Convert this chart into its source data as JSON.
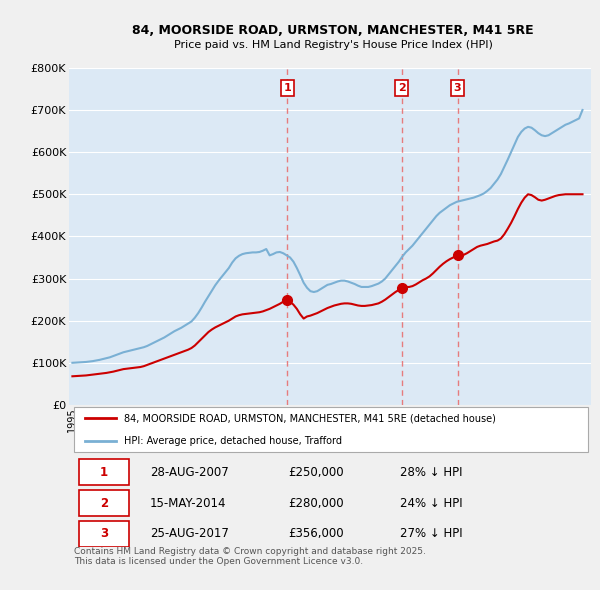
{
  "title": "84, MOORSIDE ROAD, URMSTON, MANCHESTER, M41 5RE",
  "subtitle": "Price paid vs. HM Land Registry's House Price Index (HPI)",
  "ylim": [
    0,
    800000
  ],
  "yticks": [
    0,
    100000,
    200000,
    300000,
    400000,
    500000,
    600000,
    700000,
    800000
  ],
  "ytick_labels": [
    "£0",
    "£100K",
    "£200K",
    "£300K",
    "£400K",
    "£500K",
    "£600K",
    "£700K",
    "£800K"
  ],
  "xlim_start": 1994.8,
  "xlim_end": 2025.5,
  "background_color": "#f0f0f0",
  "plot_bg_color": "#dce9f5",
  "grid_color": "#ffffff",
  "red_color": "#cc0000",
  "blue_color": "#7ab0d4",
  "vline_color": "#e87070",
  "transactions": [
    {
      "num": 1,
      "date": "28-AUG-2007",
      "price": "£250,000",
      "hpi": "28% ↓ HPI",
      "year": 2007.65
    },
    {
      "num": 2,
      "date": "15-MAY-2014",
      "price": "£280,000",
      "hpi": "24% ↓ HPI",
      "year": 2014.37
    },
    {
      "num": 3,
      "date": "25-AUG-2017",
      "price": "£356,000",
      "hpi": "27% ↓ HPI",
      "year": 2017.65
    }
  ],
  "legend_line1": "84, MOORSIDE ROAD, URMSTON, MANCHESTER, M41 5RE (detached house)",
  "legend_line2": "HPI: Average price, detached house, Trafford",
  "footnote": "Contains HM Land Registry data © Crown copyright and database right 2025.\nThis data is licensed under the Open Government Licence v3.0.",
  "hpi_data": {
    "years": [
      1995.0,
      1995.2,
      1995.4,
      1995.6,
      1995.8,
      1996.0,
      1996.2,
      1996.4,
      1996.6,
      1996.8,
      1997.0,
      1997.2,
      1997.4,
      1997.6,
      1997.8,
      1998.0,
      1998.2,
      1998.4,
      1998.6,
      1998.8,
      1999.0,
      1999.2,
      1999.4,
      1999.6,
      1999.8,
      2000.0,
      2000.2,
      2000.4,
      2000.6,
      2000.8,
      2001.0,
      2001.2,
      2001.4,
      2001.6,
      2001.8,
      2002.0,
      2002.2,
      2002.4,
      2002.6,
      2002.8,
      2003.0,
      2003.2,
      2003.4,
      2003.6,
      2003.8,
      2004.0,
      2004.2,
      2004.4,
      2004.6,
      2004.8,
      2005.0,
      2005.2,
      2005.4,
      2005.6,
      2005.8,
      2006.0,
      2006.2,
      2006.4,
      2006.6,
      2006.8,
      2007.0,
      2007.2,
      2007.4,
      2007.6,
      2007.8,
      2008.0,
      2008.2,
      2008.4,
      2008.6,
      2008.8,
      2009.0,
      2009.2,
      2009.4,
      2009.6,
      2009.8,
      2010.0,
      2010.2,
      2010.4,
      2010.6,
      2010.8,
      2011.0,
      2011.2,
      2011.4,
      2011.6,
      2011.8,
      2012.0,
      2012.2,
      2012.4,
      2012.6,
      2012.8,
      2013.0,
      2013.2,
      2013.4,
      2013.6,
      2013.8,
      2014.0,
      2014.2,
      2014.4,
      2014.6,
      2014.8,
      2015.0,
      2015.2,
      2015.4,
      2015.6,
      2015.8,
      2016.0,
      2016.2,
      2016.4,
      2016.6,
      2016.8,
      2017.0,
      2017.2,
      2017.4,
      2017.6,
      2017.8,
      2018.0,
      2018.2,
      2018.4,
      2018.6,
      2018.8,
      2019.0,
      2019.2,
      2019.4,
      2019.6,
      2019.8,
      2020.0,
      2020.2,
      2020.4,
      2020.6,
      2020.8,
      2021.0,
      2021.2,
      2021.4,
      2021.6,
      2021.8,
      2022.0,
      2022.2,
      2022.4,
      2022.6,
      2022.8,
      2023.0,
      2023.2,
      2023.4,
      2023.6,
      2023.8,
      2024.0,
      2024.2,
      2024.4,
      2024.6,
      2024.8,
      2025.0
    ],
    "values": [
      100000,
      100500,
      101000,
      101500,
      102000,
      103000,
      104000,
      105500,
      107000,
      109000,
      111000,
      113000,
      116000,
      119000,
      122000,
      125000,
      127000,
      129000,
      131000,
      133000,
      135000,
      137000,
      140000,
      144000,
      148000,
      152000,
      156000,
      160000,
      165000,
      170000,
      175000,
      179000,
      183000,
      188000,
      193000,
      198000,
      207000,
      218000,
      231000,
      245000,
      258000,
      271000,
      284000,
      295000,
      305000,
      315000,
      325000,
      338000,
      348000,
      354000,
      358000,
      360000,
      361000,
      362000,
      362000,
      363000,
      366000,
      370000,
      355000,
      358000,
      362000,
      363000,
      360000,
      355000,
      350000,
      340000,
      325000,
      308000,
      290000,
      278000,
      270000,
      268000,
      270000,
      275000,
      280000,
      285000,
      287000,
      290000,
      293000,
      295000,
      295000,
      293000,
      290000,
      287000,
      283000,
      280000,
      280000,
      280000,
      282000,
      285000,
      288000,
      293000,
      300000,
      310000,
      320000,
      330000,
      340000,
      352000,
      362000,
      370000,
      378000,
      388000,
      398000,
      408000,
      418000,
      428000,
      438000,
      448000,
      456000,
      462000,
      468000,
      474000,
      478000,
      482000,
      484000,
      486000,
      488000,
      490000,
      492000,
      495000,
      498000,
      502000,
      508000,
      515000,
      525000,
      535000,
      548000,
      565000,
      582000,
      600000,
      618000,
      636000,
      648000,
      656000,
      660000,
      658000,
      652000,
      645000,
      640000,
      638000,
      640000,
      645000,
      650000,
      655000,
      660000,
      665000,
      668000,
      672000,
      676000,
      680000,
      700000
    ]
  },
  "price_data": {
    "years": [
      1995.0,
      1995.2,
      1995.4,
      1995.6,
      1995.8,
      1996.0,
      1996.2,
      1996.4,
      1996.6,
      1996.8,
      1997.0,
      1997.2,
      1997.4,
      1997.6,
      1997.8,
      1998.0,
      1998.2,
      1998.4,
      1998.6,
      1998.8,
      1999.0,
      1999.2,
      1999.4,
      1999.6,
      1999.8,
      2000.0,
      2000.2,
      2000.4,
      2000.6,
      2000.8,
      2001.0,
      2001.2,
      2001.4,
      2001.6,
      2001.8,
      2002.0,
      2002.2,
      2002.4,
      2002.6,
      2002.8,
      2003.0,
      2003.2,
      2003.4,
      2003.6,
      2003.8,
      2004.0,
      2004.2,
      2004.4,
      2004.6,
      2004.8,
      2005.0,
      2005.2,
      2005.4,
      2005.6,
      2005.8,
      2006.0,
      2006.2,
      2006.4,
      2006.6,
      2006.8,
      2007.0,
      2007.2,
      2007.4,
      2007.65,
      2007.8,
      2008.0,
      2008.2,
      2008.4,
      2008.6,
      2008.8,
      2009.0,
      2009.2,
      2009.4,
      2009.6,
      2009.8,
      2010.0,
      2010.2,
      2010.4,
      2010.6,
      2010.8,
      2011.0,
      2011.2,
      2011.4,
      2011.6,
      2011.8,
      2012.0,
      2012.2,
      2012.4,
      2012.6,
      2012.8,
      2013.0,
      2013.2,
      2013.4,
      2013.6,
      2013.8,
      2014.0,
      2014.2,
      2014.37,
      2014.6,
      2014.8,
      2015.0,
      2015.2,
      2015.4,
      2015.6,
      2015.8,
      2016.0,
      2016.2,
      2016.4,
      2016.6,
      2016.8,
      2017.0,
      2017.2,
      2017.4,
      2017.65,
      2017.8,
      2018.0,
      2018.2,
      2018.4,
      2018.6,
      2018.8,
      2019.0,
      2019.2,
      2019.4,
      2019.6,
      2019.8,
      2020.0,
      2020.2,
      2020.4,
      2020.6,
      2020.8,
      2021.0,
      2021.2,
      2021.4,
      2021.6,
      2021.8,
      2022.0,
      2022.2,
      2022.4,
      2022.6,
      2022.8,
      2023.0,
      2023.2,
      2023.4,
      2023.6,
      2023.8,
      2024.0,
      2024.2,
      2024.4,
      2024.6,
      2024.8,
      2025.0
    ],
    "values": [
      68000,
      68500,
      69000,
      69500,
      70000,
      71000,
      72000,
      73000,
      74000,
      75000,
      76000,
      77500,
      79000,
      81000,
      83000,
      85000,
      86000,
      87000,
      88000,
      89000,
      90000,
      92000,
      95000,
      98000,
      101000,
      104000,
      107000,
      110000,
      113000,
      116000,
      119000,
      122000,
      125000,
      128000,
      131000,
      135000,
      141000,
      149000,
      157000,
      165000,
      173000,
      179000,
      184000,
      188000,
      192000,
      196000,
      200000,
      205000,
      210000,
      213000,
      215000,
      216000,
      217000,
      218000,
      219000,
      220000,
      222000,
      225000,
      228000,
      232000,
      236000,
      240000,
      245000,
      250000,
      245000,
      238000,
      228000,
      215000,
      205000,
      210000,
      212000,
      215000,
      218000,
      222000,
      226000,
      230000,
      233000,
      236000,
      238000,
      240000,
      241000,
      241000,
      240000,
      238000,
      236000,
      235000,
      235000,
      236000,
      237000,
      239000,
      241000,
      245000,
      250000,
      256000,
      262000,
      268000,
      273000,
      278000,
      280000,
      280000,
      282000,
      286000,
      291000,
      296000,
      300000,
      305000,
      312000,
      320000,
      328000,
      335000,
      341000,
      346000,
      350000,
      356000,
      352000,
      356000,
      360000,
      365000,
      370000,
      375000,
      378000,
      380000,
      382000,
      385000,
      388000,
      390000,
      395000,
      405000,
      418000,
      432000,
      448000,
      465000,
      480000,
      492000,
      500000,
      498000,
      493000,
      487000,
      485000,
      487000,
      490000,
      493000,
      496000,
      498000,
      499000,
      500000,
      500000,
      500000,
      500000,
      500000,
      500000
    ]
  }
}
